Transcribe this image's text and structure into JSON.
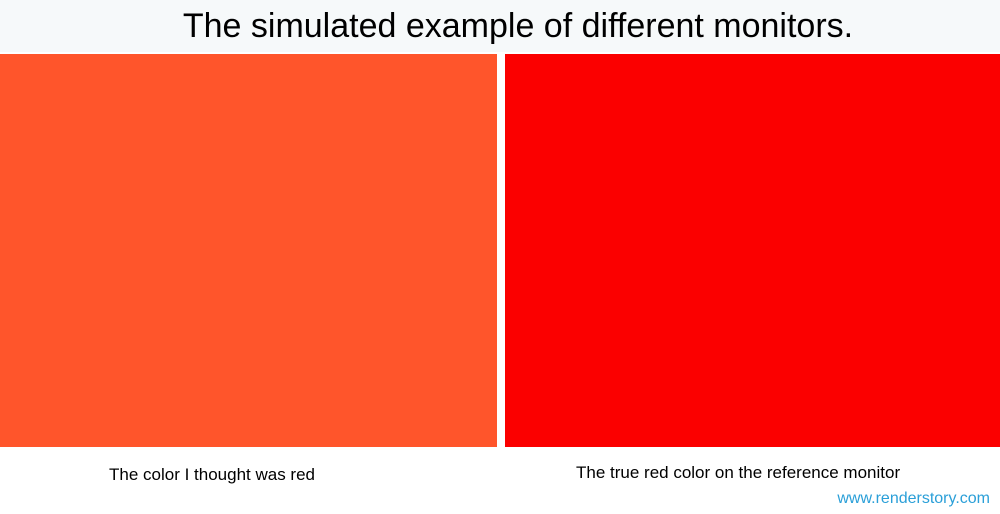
{
  "title": "The simulated example of different monitors.",
  "panels": [
    {
      "color": "#ff552b",
      "caption": "The color I thought was red"
    },
    {
      "color": "#fb0000",
      "caption": "The true red color on the reference monitor"
    }
  ],
  "watermark": "www.renderstory.com",
  "colors": {
    "header_background": "#f6f9fa",
    "watermark": "#2a9fd8"
  }
}
